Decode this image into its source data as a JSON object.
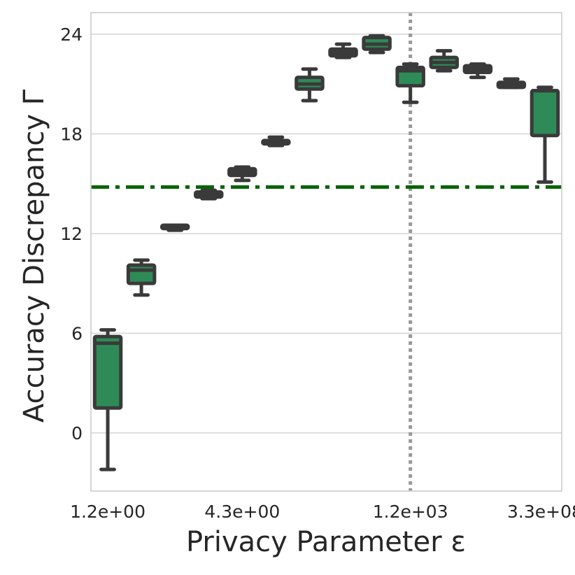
{
  "chart_data": {
    "type": "box",
    "title": "",
    "xlabel": "Privacy Parameter ε",
    "ylabel": "Accuracy Discrepancy Γ",
    "ylim": [
      -3.5,
      25.3
    ],
    "yticks": [
      0,
      6,
      12,
      18,
      24
    ],
    "xtick_labels": [
      "1.2e+00",
      "4.3e+00",
      "1.2e+03",
      "3.3e+08"
    ],
    "xtick_positions": [
      0,
      4,
      9,
      13
    ],
    "grid": true,
    "box_color": "#2e8b57",
    "box_edge_color": "#3a3a3a",
    "reference_hline": {
      "value": 14.8,
      "color": "#006400",
      "style": "dash-dot"
    },
    "reference_vline": {
      "position": 9,
      "color": "#999999",
      "style": "dotted"
    },
    "boxes": [
      {
        "index": 0,
        "whislo": -2.2,
        "q1": 1.5,
        "median": 5.4,
        "q3": 5.8,
        "whishi": 6.2
      },
      {
        "index": 1,
        "whislo": 8.3,
        "q1": 9.0,
        "median": 9.8,
        "q3": 10.1,
        "whishi": 10.4
      },
      {
        "index": 2,
        "whislo": 12.2,
        "q1": 12.3,
        "median": 12.4,
        "q3": 12.5,
        "whishi": 12.5
      },
      {
        "index": 3,
        "whislo": 14.1,
        "q1": 14.2,
        "median": 14.4,
        "q3": 14.5,
        "whishi": 14.6
      },
      {
        "index": 4,
        "whislo": 15.2,
        "q1": 15.5,
        "median": 15.7,
        "q3": 15.9,
        "whishi": 16.0
      },
      {
        "index": 5,
        "whislo": 17.3,
        "q1": 17.4,
        "median": 17.5,
        "q3": 17.6,
        "whishi": 17.8
      },
      {
        "index": 6,
        "whislo": 20.0,
        "q1": 20.7,
        "median": 21.0,
        "q3": 21.4,
        "whishi": 21.9
      },
      {
        "index": 7,
        "whislo": 22.6,
        "q1": 22.7,
        "median": 22.9,
        "q3": 23.1,
        "whishi": 23.4
      },
      {
        "index": 8,
        "whislo": 22.9,
        "q1": 23.1,
        "median": 23.4,
        "q3": 23.8,
        "whishi": 23.9
      },
      {
        "index": 9,
        "whislo": 19.9,
        "q1": 20.9,
        "median": 21.8,
        "q3": 22.0,
        "whishi": 22.2
      },
      {
        "index": 10,
        "whislo": 21.8,
        "q1": 22.0,
        "median": 22.3,
        "q3": 22.6,
        "whishi": 23.0
      },
      {
        "index": 11,
        "whislo": 21.4,
        "q1": 21.7,
        "median": 21.9,
        "q3": 22.1,
        "whishi": 22.2
      },
      {
        "index": 12,
        "whislo": 20.8,
        "q1": 20.8,
        "median": 21.0,
        "q3": 21.1,
        "whishi": 21.3
      },
      {
        "index": 13,
        "whislo": 15.1,
        "q1": 17.9,
        "median": 20.6,
        "q3": 20.6,
        "whishi": 20.8
      }
    ]
  }
}
